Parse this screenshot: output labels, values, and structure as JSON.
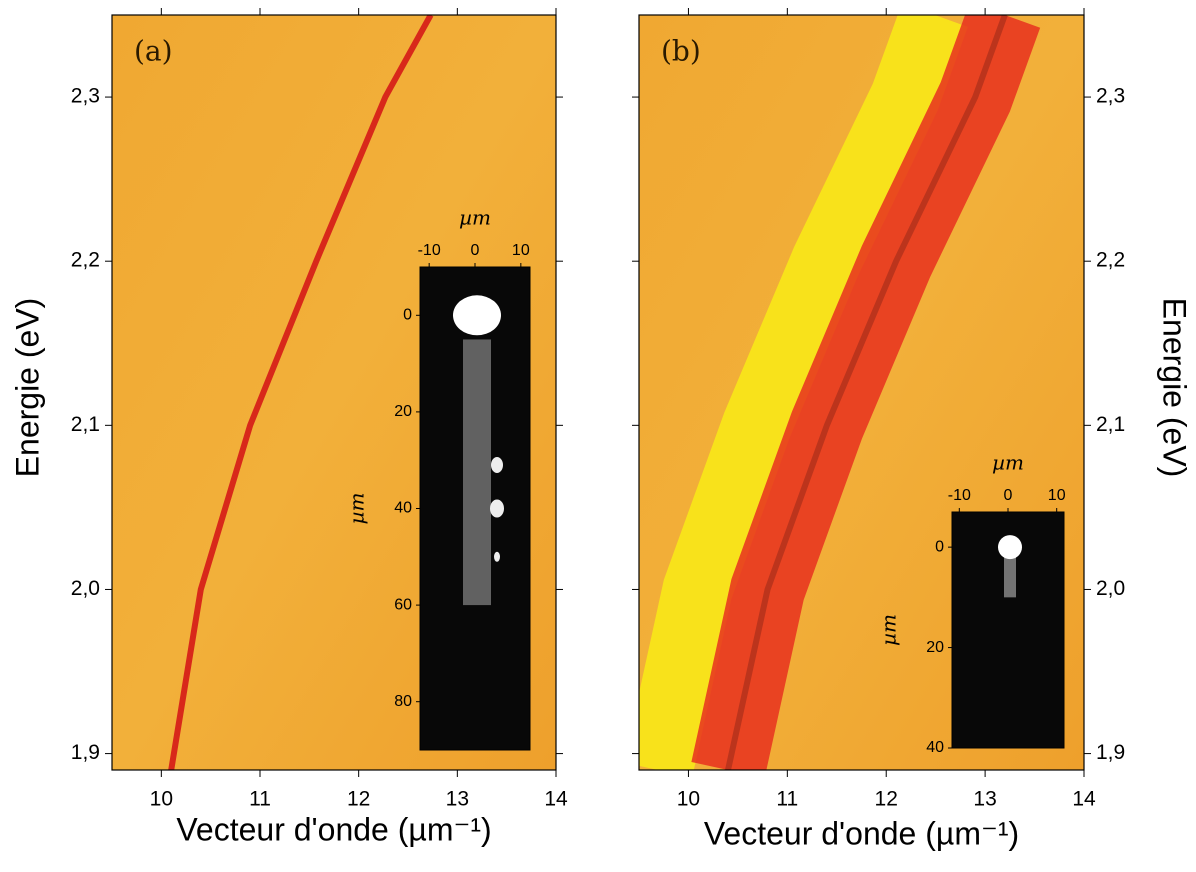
{
  "chart_data": [
    {
      "type": "line",
      "label": "(a)",
      "x_label": "Vecteur d'onde (µm⁻¹)",
      "y_label": "Energie (eV)",
      "y_axis_side": "left",
      "xlim": [
        9.5,
        14
      ],
      "ylim": [
        1.89,
        2.35
      ],
      "xticks": [
        10,
        11,
        12,
        13,
        14
      ],
      "yticks": [
        {
          "value": 1.9,
          "label": "1,9"
        },
        {
          "value": 2.0,
          "label": "2,0"
        },
        {
          "value": 2.1,
          "label": "2,1"
        },
        {
          "value": 2.2,
          "label": "2,2"
        },
        {
          "value": 2.3,
          "label": "2,3"
        }
      ],
      "x": [
        10.1,
        10.4,
        10.9,
        11.57,
        12.27,
        12.73
      ],
      "values": [
        1.89,
        2.0,
        2.1,
        2.2,
        2.3,
        2.35
      ],
      "color": "#d8281a",
      "inset": {
        "x_label": "µm",
        "y_label": "µm",
        "xlim": [
          -12,
          12
        ],
        "ylim": [
          -10,
          90
        ],
        "xticks": [
          -10,
          0,
          10
        ],
        "yticks": [
          0,
          20,
          40,
          60,
          80
        ]
      }
    },
    {
      "type": "line",
      "label": "(b)",
      "x_label": "Vecteur d'onde (µm⁻¹)",
      "y_label": "Energie (eV)",
      "y_axis_side": "right",
      "xlim": [
        9.5,
        14
      ],
      "ylim": [
        1.89,
        2.35
      ],
      "xticks": [
        10,
        11,
        12,
        13,
        14
      ],
      "yticks": [
        {
          "value": 1.9,
          "label": "1,9"
        },
        {
          "value": 2.0,
          "label": "2,0"
        },
        {
          "value": 2.1,
          "label": "2,1"
        },
        {
          "value": 2.2,
          "label": "2,2"
        },
        {
          "value": 2.3,
          "label": "2,3"
        }
      ],
      "x": [
        10.4,
        10.8,
        11.4,
        12.1,
        12.9,
        13.2
      ],
      "values": [
        1.89,
        2.0,
        2.1,
        2.2,
        2.3,
        2.35
      ],
      "color": "#e8301e",
      "inset": {
        "x_label": "µm",
        "y_label": "µm",
        "xlim": [
          -11.5,
          11.5
        ],
        "ylim": [
          -7,
          40
        ],
        "xticks": [
          -10,
          0,
          10
        ],
        "yticks": [
          0,
          20,
          40
        ]
      }
    }
  ]
}
